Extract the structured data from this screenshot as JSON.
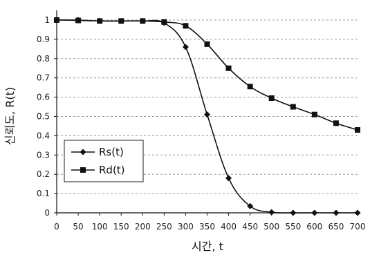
{
  "chart_data": {
    "type": "line",
    "title": "",
    "xlabel": "시간, t",
    "ylabel": "신뢰도, R(t)",
    "x": [
      0,
      50,
      100,
      150,
      200,
      250,
      300,
      350,
      400,
      450,
      500,
      550,
      600,
      650,
      700
    ],
    "x_ticks": [
      "0",
      "50",
      "100",
      "150",
      "200",
      "250",
      "300",
      "350",
      "400",
      "450",
      "500",
      "550",
      "600",
      "650",
      "700"
    ],
    "y_ticks": [
      "0",
      "0.1",
      "0.2",
      "0.3",
      "0.4",
      "0.5",
      "0.6",
      "0.7",
      "0.8",
      "0.9",
      "1"
    ],
    "xlim": [
      0,
      700
    ],
    "ylim": [
      0,
      1
    ],
    "grid": "horizontal dashed",
    "legend_position": "center-left",
    "series": [
      {
        "name": "Rs(t)",
        "marker": "diamond",
        "color": "#111111",
        "values": [
          1.0,
          1.0,
          0.995,
          0.995,
          0.995,
          0.985,
          0.86,
          0.51,
          0.18,
          0.035,
          0.003,
          0.0,
          0.0,
          0.0,
          0.0
        ]
      },
      {
        "name": "Rd(t)",
        "marker": "square",
        "color": "#111111",
        "values": [
          1.0,
          0.998,
          0.995,
          0.995,
          0.995,
          0.99,
          0.97,
          0.875,
          0.75,
          0.655,
          0.595,
          0.55,
          0.51,
          0.465,
          0.43
        ]
      }
    ]
  }
}
